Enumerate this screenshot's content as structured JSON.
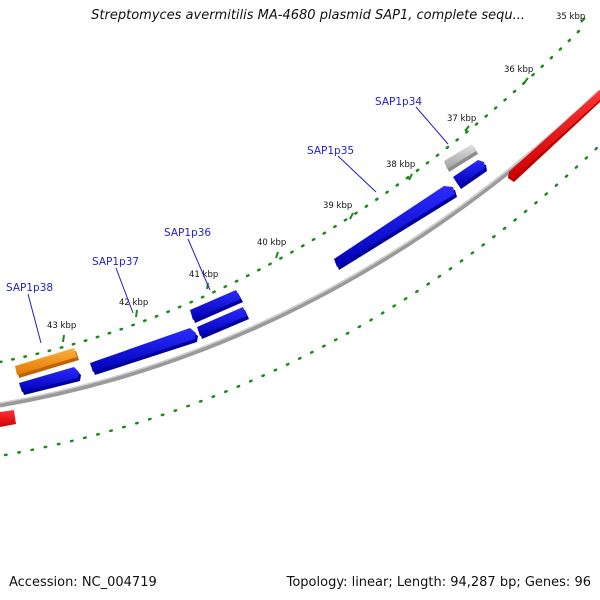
{
  "header": {
    "title": "Streptomyces avermitilis MA-4680 plasmid SAP1, complete sequ..."
  },
  "footer": {
    "accession": "Accession: NC_004719",
    "summary": "Topology: linear; Length: 94,287 bp; Genes: 96"
  },
  "scale_ticks": [
    "35 kbp",
    "36 kbp",
    "37 kbp",
    "38 kbp",
    "39 kbp",
    "40 kbp",
    "41 kbp",
    "42 kbp",
    "43 kbp"
  ],
  "genes": [
    {
      "name": "SAP1p34",
      "color": "#b7b7b7"
    },
    {
      "name": "SAP1p35",
      "color": "#0000ee"
    },
    {
      "name": "SAP1p36",
      "color": "#0000ee"
    },
    {
      "name": "SAP1p37",
      "color": "#0000ee"
    },
    {
      "name": "SAP1p38",
      "color": "#ff8c00"
    }
  ],
  "colors": {
    "cds": "#0000ee",
    "rrna_or_other": "#ff8c00",
    "pseudo": "#b7b7b7",
    "external_feature": "#ff0000",
    "backbone": "#888888",
    "dot_ring": "#1a8a1a"
  }
}
